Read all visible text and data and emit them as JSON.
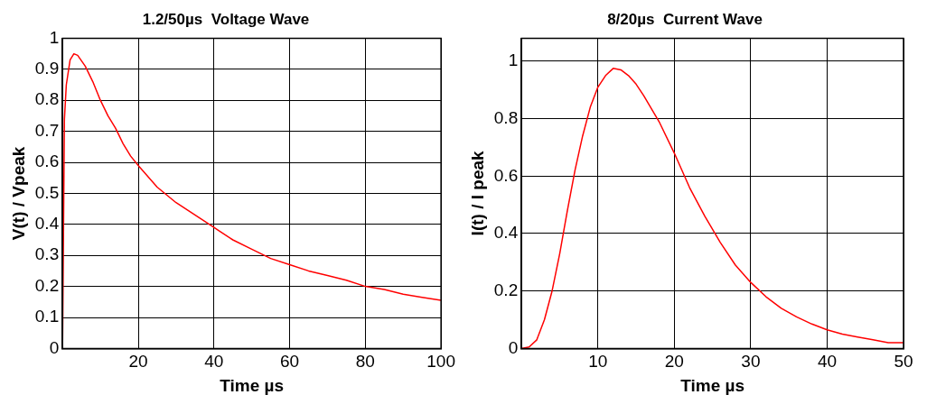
{
  "chart_data": [
    {
      "type": "line",
      "title": "1.2/50µs  Voltage Wave",
      "xlabel": "Time µs",
      "ylabel": "V(t) / Vpeak",
      "xlim": [
        0,
        100
      ],
      "xticks": [
        20,
        40,
        60,
        80,
        100
      ],
      "ylim": [
        0,
        1
      ],
      "yticks": [
        0,
        0.1,
        0.2,
        0.3,
        0.4,
        0.5,
        0.6,
        0.7,
        0.8,
        0.9,
        1
      ],
      "grid": true,
      "line_style": "solid",
      "marker": "none",
      "x": [
        0,
        0.5,
        1,
        2,
        3,
        4,
        6,
        8,
        10,
        12,
        14,
        16,
        18,
        20,
        25,
        30,
        35,
        40,
        45,
        50,
        55,
        60,
        65,
        70,
        75,
        80,
        85,
        90,
        95,
        100
      ],
      "series": [
        {
          "color": "#ff0000",
          "values": [
            0,
            0.74,
            0.85,
            0.93,
            0.95,
            0.945,
            0.91,
            0.86,
            0.8,
            0.75,
            0.71,
            0.66,
            0.62,
            0.59,
            0.52,
            0.47,
            0.43,
            0.39,
            0.35,
            0.32,
            0.29,
            0.27,
            0.25,
            0.235,
            0.22,
            0.2,
            0.19,
            0.175,
            0.165,
            0.155
          ]
        }
      ]
    },
    {
      "type": "line",
      "title": "8/20µs  Current Wave",
      "xlabel": "Time µs",
      "ylabel": "I(t) / I peak",
      "xlim": [
        0,
        50
      ],
      "xticks": [
        10,
        20,
        30,
        40,
        50
      ],
      "ylim": [
        0,
        1.08
      ],
      "yticks": [
        0,
        0.2,
        0.4,
        0.6,
        0.8,
        1
      ],
      "grid": true,
      "line_style": "solid",
      "marker": "none",
      "x": [
        0,
        1,
        2,
        3,
        4,
        5,
        6,
        7,
        8,
        9,
        10,
        11,
        12,
        13,
        14,
        15,
        16,
        18,
        20,
        22,
        24,
        26,
        28,
        30,
        32,
        34,
        36,
        38,
        40,
        42,
        44,
        46,
        48,
        50
      ],
      "series": [
        {
          "color": "#ff0000",
          "values": [
            0,
            0.005,
            0.03,
            0.1,
            0.2,
            0.33,
            0.48,
            0.62,
            0.74,
            0.84,
            0.91,
            0.95,
            0.975,
            0.97,
            0.95,
            0.92,
            0.88,
            0.79,
            0.68,
            0.56,
            0.46,
            0.37,
            0.29,
            0.23,
            0.18,
            0.14,
            0.11,
            0.085,
            0.065,
            0.05,
            0.04,
            0.03,
            0.02,
            0.02
          ]
        }
      ]
    }
  ]
}
